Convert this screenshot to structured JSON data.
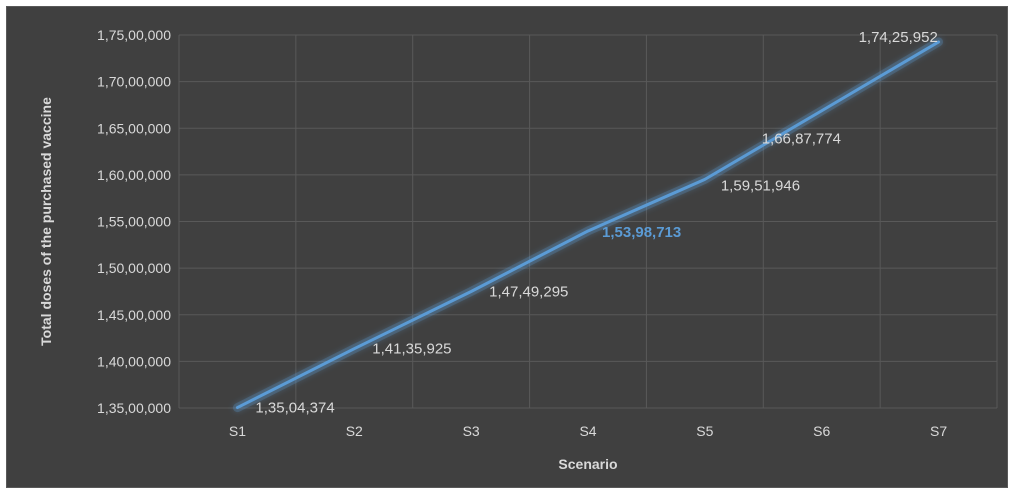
{
  "chart_data": {
    "type": "line",
    "categories": [
      "S1",
      "S2",
      "S3",
      "S4",
      "S5",
      "S6",
      "S7"
    ],
    "values": [
      13504374,
      14135925,
      14749295,
      15398713,
      15951946,
      16687774,
      17425952
    ],
    "data_labels": [
      "1,35,04,374",
      "1,41,35,925",
      "1,47,49,295",
      "1,53,98,713",
      "1,59,51,946",
      "1,66,87,774",
      "1,74,25,952"
    ],
    "highlighted_label_index": 3,
    "xlabel": "Scenario",
    "ylabel": "Total doses of the purchased vaccine",
    "ylim": [
      13500000,
      17500000
    ],
    "yticks": [
      13500000,
      14000000,
      14500000,
      15000000,
      15500000,
      16000000,
      16500000,
      17000000,
      17500000
    ],
    "ytick_labels": [
      "1,35,00,000",
      "1,40,00,000",
      "1,45,00,000",
      "1,50,00,000",
      "1,55,00,000",
      "1,60,00,000",
      "1,65,00,000",
      "1,70,00,000",
      "1,75,00,000"
    ],
    "grid": true,
    "legend": false,
    "colors": {
      "background": "#404040",
      "line": "#5b9bd5",
      "grid": "#595959",
      "text": "#d9d9d9",
      "highlight_label": "#5b9bd5"
    }
  }
}
